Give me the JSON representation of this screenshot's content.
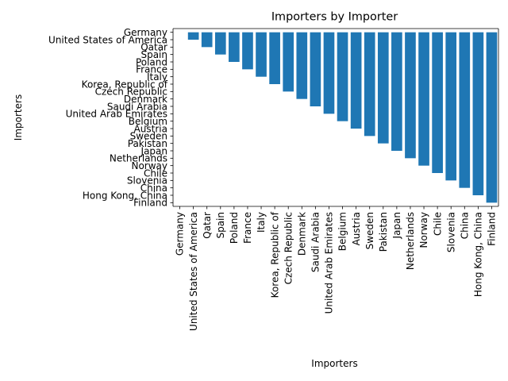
{
  "chart_data": {
    "type": "bar",
    "title": "Importers by Importer",
    "xlabel": "Importers",
    "ylabel": "Importers",
    "categories": [
      "Germany",
      "United States of America",
      "Qatar",
      "Spain",
      "Poland",
      "France",
      "Italy",
      "Korea, Republic of",
      "Czech Republic",
      "Denmark",
      "Saudi Arabia",
      "United Arab Emirates",
      "Belgium",
      "Austria",
      "Sweden",
      "Pakistan",
      "Japan",
      "Netherlands",
      "Norway",
      "Chile",
      "Slovenia",
      "China",
      "Hong Kong, China",
      "Finland"
    ],
    "values": [
      0,
      1,
      2,
      3,
      4,
      5,
      6,
      7,
      8,
      9,
      10,
      11,
      12,
      13,
      14,
      15,
      16,
      17,
      18,
      19,
      20,
      21,
      22,
      23
    ],
    "y_axis": "categorical, same categories in order, top to bottom",
    "bar_color": "#1f77b4",
    "grid": false,
    "legend": "none"
  }
}
